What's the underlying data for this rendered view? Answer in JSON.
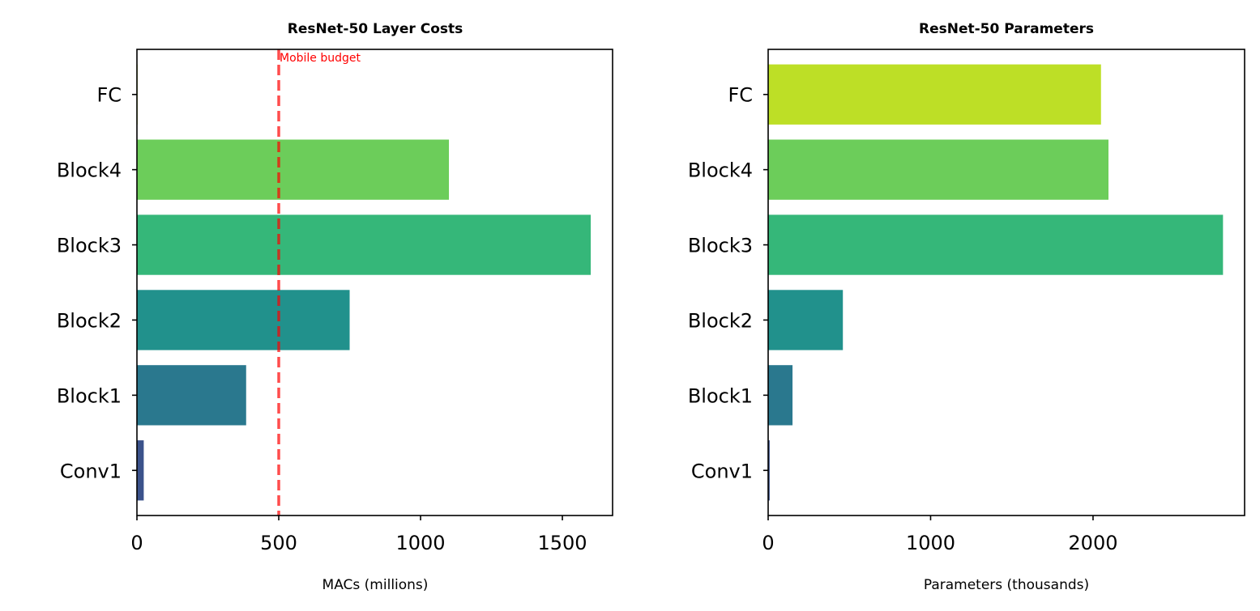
{
  "chart_data": [
    {
      "type": "bar",
      "orientation": "horizontal",
      "title": "ResNet-50 Layer Costs",
      "xlabel": "MACs (millions)",
      "ylabel": "",
      "categories": [
        "Conv1",
        "Block1",
        "Block2",
        "Block3",
        "Block4",
        "FC"
      ],
      "values": [
        24,
        385,
        750,
        1600,
        1100,
        2
      ],
      "colors": [
        "#3b528b",
        "#2a788e",
        "#21918c",
        "#35b779",
        "#6ccd5a",
        "#bddf26"
      ],
      "xlim": [
        0,
        1677
      ],
      "xticks": [
        0,
        500,
        1000,
        1500
      ],
      "xtick_labels": [
        "0",
        "500",
        "1000",
        "1500"
      ],
      "grid": false,
      "reference_line": {
        "value": 500,
        "label": "Mobile budget",
        "color": "#ff0000",
        "style": "dashed"
      }
    },
    {
      "type": "bar",
      "orientation": "horizontal",
      "title": "ResNet-50 Parameters",
      "xlabel": "Parameters (thousands)",
      "ylabel": "",
      "categories": [
        "Conv1",
        "Block1",
        "Block2",
        "Block3",
        "Block4",
        "FC"
      ],
      "values": [
        9.4,
        150,
        460,
        2800,
        2095,
        2049
      ],
      "colors": [
        "#3b528b",
        "#2a788e",
        "#21918c",
        "#35b779",
        "#6ccd5a",
        "#bddf26"
      ],
      "xlim": [
        0,
        2933
      ],
      "xticks": [
        0,
        1000,
        2000
      ],
      "xtick_labels": [
        "0",
        "1000",
        "2000"
      ],
      "grid": false
    }
  ]
}
